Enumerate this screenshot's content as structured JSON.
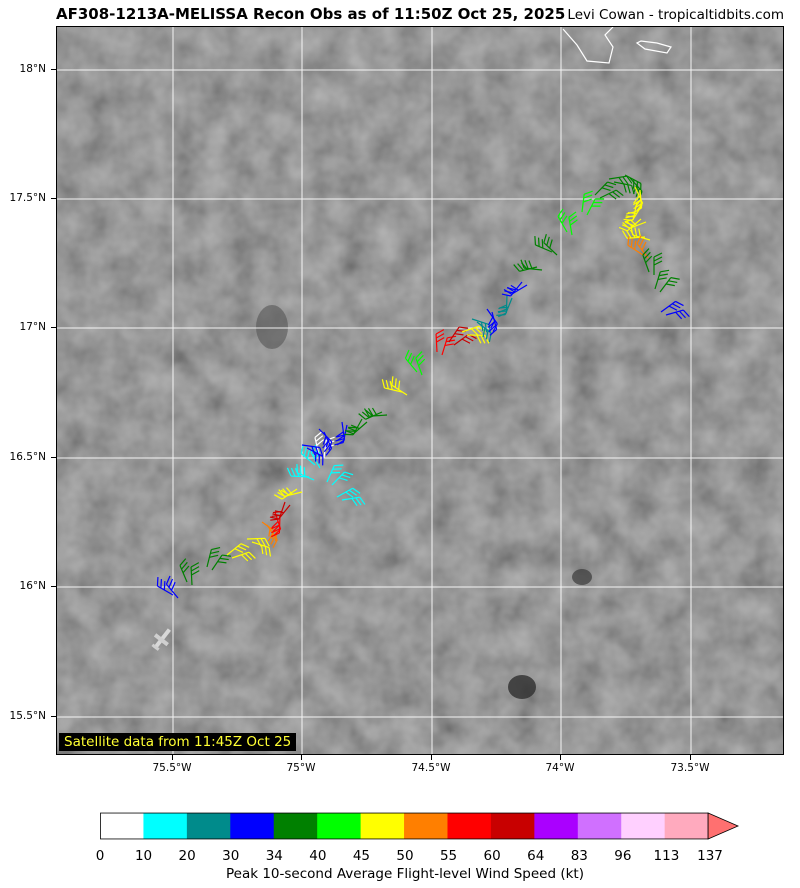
{
  "header": {
    "title": "AF308-1213A-MELISSA Recon Obs as of 11:50Z Oct 25, 2025",
    "credit": "Levi Cowan - tropicaltidbits.com"
  },
  "map": {
    "satellite_label": "Satellite data from 11:45Z Oct 25",
    "lat_labels": [
      "18°N",
      "17.5°N",
      "17°N",
      "16.5°N",
      "16°N",
      "15.5°N"
    ],
    "lon_labels": [
      "75.5°W",
      "75°W",
      "74.5°W",
      "74°W",
      "73.5°W"
    ],
    "background_color": "#6b6b6b",
    "gridline_color": "#ffffff"
  },
  "colorbar": {
    "label": "Peak 10-second Average Flight-level Wind Speed (kt)",
    "ticks": [
      "0",
      "10",
      "20",
      "30",
      "34",
      "40",
      "45",
      "50",
      "55",
      "60",
      "64",
      "83",
      "96",
      "113",
      "137"
    ],
    "colors": [
      "#ffffff",
      "#00ffff",
      "#008b8b",
      "#0000ff",
      "#008000",
      "#00ff00",
      "#ffff00",
      "#ff7f00",
      "#ff0000",
      "#c80000",
      "#aa00ff",
      "#d070ff",
      "#ffd0ff",
      "#ffaabe",
      "#ff7070"
    ]
  }
}
